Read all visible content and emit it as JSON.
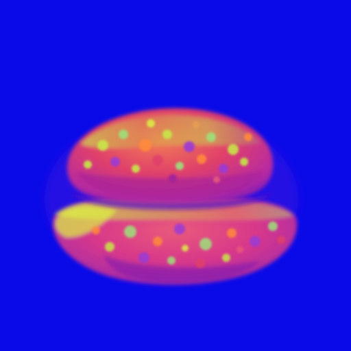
{
  "scene": {
    "subject": "burger-like-object",
    "colors": {
      "background": "#0a0ae8",
      "top_bun_base": "#e0406a",
      "top_bun_highlight": "#c8e64a",
      "top_bun_shadow": "#a0209a",
      "bottom_bun_base": "#d8388a",
      "bottom_bun_highlight": "#dcec46",
      "bottom_bun_shadow": "#7a1ab0",
      "gap_shadow": "#5a10c8",
      "speckle_green": "#9ee07a",
      "speckle_orange": "#ff8a3a",
      "speckle_violet": "#9a3ad8"
    }
  }
}
